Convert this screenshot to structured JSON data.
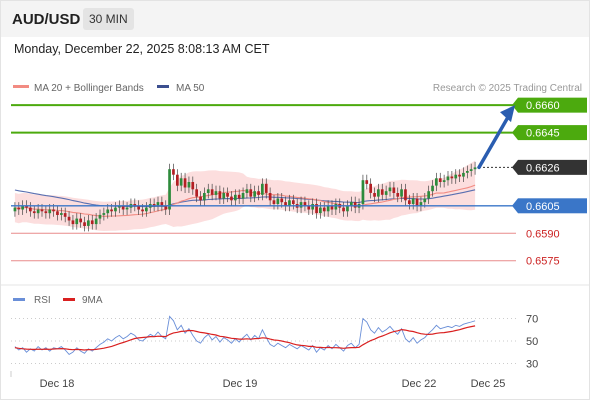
{
  "header": {
    "pair": "AUD/USD",
    "timeframe": "30 MIN"
  },
  "datetime": "Monday, December 22, 2025 8:08:13 AM CET",
  "legend": {
    "ma20": "MA 20 + Bollinger Bands",
    "ma50": "MA 50",
    "credit": "Research © 2025 Trading Central"
  },
  "rsi_legend": {
    "rsi": "RSI",
    "ma": "9MA"
  },
  "colors": {
    "candle_up": "#2e8b3c",
    "candle_down": "#b31f24",
    "band_fill": "#fbd8d8",
    "ma20": "#f28b82",
    "ma50": "#5a6fb0",
    "resistance": "#4caa0e",
    "support_pivot": "#3a76c8",
    "support": "#e88b8b",
    "last": "#333333",
    "arrow": "#2a5db0",
    "rsi": "#6a8fd8",
    "rsi_ma": "#d92020"
  },
  "chart_data": [
    {
      "type": "candlestick",
      "title": "AUD/USD 30 MIN",
      "x_ticks": [
        "Dec 18",
        "Dec 19",
        "Dec 22",
        "Dec 25"
      ],
      "ylim": [
        0.6565,
        0.6665
      ],
      "series": [
        {
          "name": "MA 20 + Bollinger Bands"
        },
        {
          "name": "MA 50"
        }
      ],
      "levels": [
        {
          "value": 0.666,
          "label": "0.6660",
          "kind": "resistance"
        },
        {
          "value": 0.6645,
          "label": "0.6645",
          "kind": "resistance"
        },
        {
          "value": 0.6626,
          "label": "0.6626",
          "kind": "last"
        },
        {
          "value": 0.6605,
          "label": "0.6605",
          "kind": "pivot"
        },
        {
          "value": 0.659,
          "label": "0.6590",
          "kind": "support"
        },
        {
          "value": 0.6575,
          "label": "0.6575",
          "kind": "support"
        }
      ],
      "close": [
        0.6604,
        0.6603,
        0.6605,
        0.6604,
        0.6602,
        0.6601,
        0.6603,
        0.6602,
        0.6601,
        0.6603,
        0.6602,
        0.66,
        0.6601,
        0.6599,
        0.6597,
        0.6595,
        0.6598,
        0.6596,
        0.6594,
        0.6597,
        0.6595,
        0.6598,
        0.66,
        0.6601,
        0.6603,
        0.6602,
        0.6604,
        0.6605,
        0.6603,
        0.6604,
        0.6606,
        0.6605,
        0.6603,
        0.6602,
        0.6604,
        0.6606,
        0.6605,
        0.6607,
        0.6605,
        0.6603,
        0.6625,
        0.6622,
        0.6616,
        0.662,
        0.6615,
        0.6618,
        0.6614,
        0.661,
        0.6608,
        0.6612,
        0.6614,
        0.6611,
        0.6613,
        0.6609,
        0.6612,
        0.661,
        0.6608,
        0.6611,
        0.6609,
        0.6612,
        0.6614,
        0.661,
        0.6613,
        0.6611,
        0.6617,
        0.6612,
        0.6608,
        0.6606,
        0.6609,
        0.6607,
        0.6605,
        0.6608,
        0.6606,
        0.6604,
        0.6607,
        0.6605,
        0.6603,
        0.6606,
        0.6601,
        0.6604,
        0.6602,
        0.6605,
        0.6603,
        0.6606,
        0.6604,
        0.6602,
        0.6605,
        0.6607,
        0.6604,
        0.6606,
        0.6619,
        0.6617,
        0.6612,
        0.661,
        0.6614,
        0.6611,
        0.6613,
        0.6615,
        0.6612,
        0.661,
        0.6614,
        0.6608,
        0.6606,
        0.6609,
        0.6605,
        0.6607,
        0.6609,
        0.6613,
        0.6616,
        0.662,
        0.6618,
        0.6619,
        0.6621,
        0.662,
        0.6622,
        0.6621,
        0.6623,
        0.6624,
        0.6625,
        0.6626
      ]
    },
    {
      "type": "line",
      "title": "RSI",
      "series": [
        {
          "name": "RSI"
        },
        {
          "name": "9MA"
        }
      ],
      "y_ticks": [
        30,
        50,
        70
      ],
      "ylim": [
        25,
        75
      ],
      "rsi": [
        45,
        42,
        44,
        40,
        43,
        41,
        45,
        42,
        44,
        41,
        44,
        43,
        45,
        42,
        38,
        40,
        44,
        41,
        39,
        43,
        41,
        44,
        47,
        49,
        52,
        50,
        53,
        55,
        52,
        54,
        57,
        55,
        51,
        50,
        53,
        56,
        54,
        58,
        54,
        52,
        72,
        68,
        60,
        64,
        57,
        61,
        55,
        50,
        48,
        53,
        56,
        51,
        54,
        49,
        53,
        51,
        48,
        52,
        49,
        53,
        56,
        51,
        55,
        52,
        60,
        53,
        47,
        45,
        48,
        46,
        44,
        47,
        45,
        43,
        46,
        44,
        42,
        46,
        40,
        44,
        42,
        46,
        43,
        47,
        44,
        41,
        46,
        48,
        44,
        47,
        70,
        67,
        60,
        57,
        62,
        58,
        60,
        63,
        59,
        56,
        61,
        52,
        49,
        53,
        48,
        51,
        53,
        57,
        60,
        64,
        61,
        62,
        63,
        62,
        64,
        63,
        65,
        66,
        67,
        68
      ],
      "rsi_ma": [
        44,
        43.5,
        43,
        42.8,
        42.6,
        42.5,
        42.7,
        42.6,
        42.8,
        42.6,
        42.9,
        43,
        43.2,
        43,
        42.5,
        42.2,
        42.5,
        42.3,
        42,
        42.3,
        42.2,
        42.5,
        43,
        43.6,
        44.4,
        45.2,
        46.3,
        47.6,
        48.7,
        49.8,
        51.1,
        52.2,
        52.8,
        53.1,
        53.5,
        53.9,
        53.8,
        54.3,
        54.1,
        53.9,
        55.9,
        57.2,
        57.8,
        58.6,
        58.8,
        59.4,
        59.3,
        58.5,
        57.7,
        57.2,
        56.6,
        55.9,
        55.4,
        54.2,
        53.8,
        53.1,
        52.4,
        52.1,
        51.7,
        51.7,
        52,
        51.6,
        52.1,
        52.2,
        52.9,
        52.6,
        51.7,
        50.9,
        50.6,
        50,
        49.2,
        48.5,
        47.4,
        46.5,
        46.1,
        45.8,
        45.2,
        45.2,
        44.4,
        44.3,
        44,
        44.3,
        44,
        44,
        43.8,
        43.5,
        43.8,
        44.1,
        44.1,
        44.4,
        46.6,
        48.6,
        50.4,
        51.6,
        53.3,
        54.5,
        55.8,
        57.3,
        58.4,
        59.1,
        60.2,
        59.7,
        58.9,
        58.5,
        57.4,
        56.5,
        56.1,
        55.9,
        56.2,
        56.9,
        57.3,
        57.5,
        58,
        58.6,
        59.4,
        60.1,
        61.2,
        62.1,
        62.9,
        63.5
      ]
    }
  ]
}
